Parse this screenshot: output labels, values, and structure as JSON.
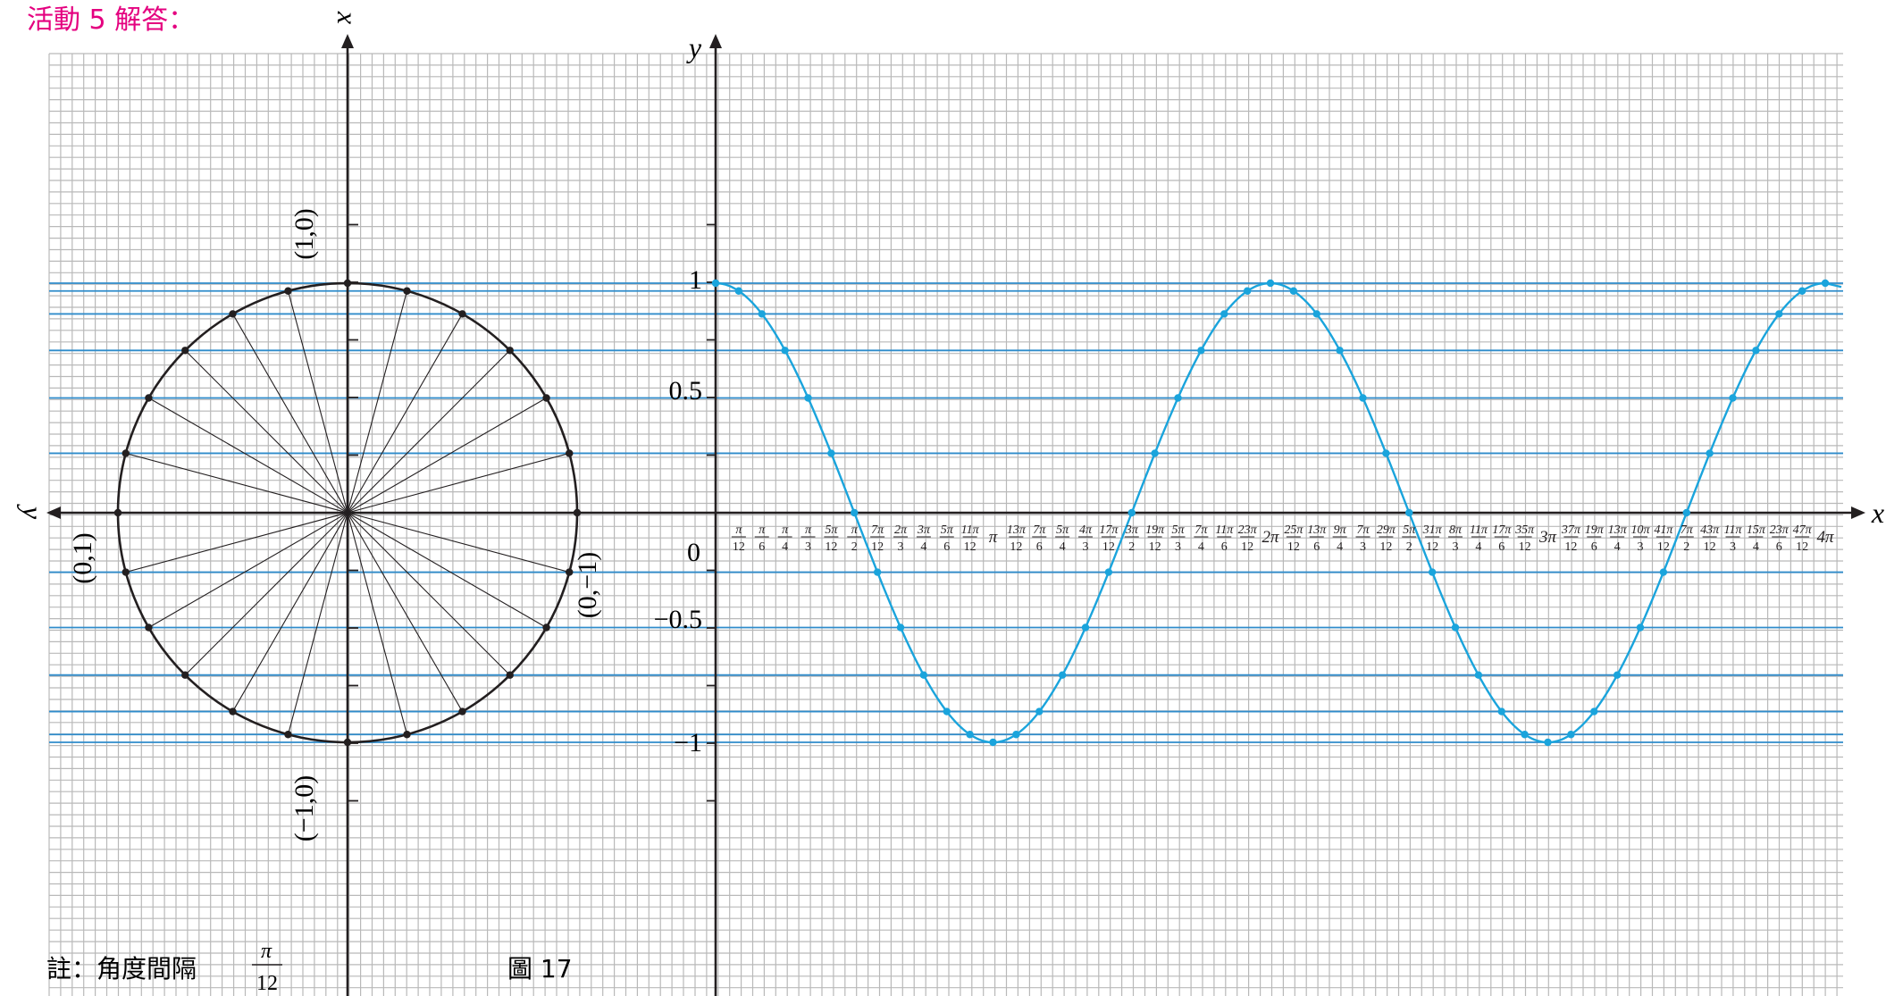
{
  "header": {
    "title": "活動 5 解答：",
    "title_color": "#e4007f"
  },
  "note": {
    "prefix": "註：角度間隔",
    "frac_num": "π",
    "frac_den": "12"
  },
  "figure_label": "圖 17",
  "colors": {
    "grid": "#b9b9b9",
    "axis": "#231f20",
    "curve": "#1aa4dc",
    "guide": "#2f8ccb"
  },
  "circle_panel": {
    "axis_up_label": "x",
    "axis_left_label": "y",
    "point_labels": {
      "top": "(1,0)",
      "bottom": "(−1,0)",
      "left": "(0,1)",
      "right": "(0,−1)"
    },
    "step_angle": "π/12"
  },
  "chart_data": {
    "type": "line",
    "function": "cos x",
    "xlabel": "x",
    "ylabel": "y",
    "xlim_in_pi": [
      0,
      4
    ],
    "ylim": [
      -1,
      1
    ],
    "y_ticks": [
      "1",
      "0.5",
      "0",
      "−0.5",
      "−1"
    ],
    "x_tick_labels": [
      [
        "π",
        "12"
      ],
      [
        "π",
        "6"
      ],
      [
        "π",
        "4"
      ],
      [
        "π",
        "3"
      ],
      [
        "5π",
        "12"
      ],
      [
        "π",
        "2"
      ],
      [
        "7π",
        "12"
      ],
      [
        "2π",
        "3"
      ],
      [
        "3π",
        "4"
      ],
      [
        "5π",
        "6"
      ],
      [
        "11π",
        "12"
      ],
      "π",
      [
        "13π",
        "12"
      ],
      [
        "7π",
        "6"
      ],
      [
        "5π",
        "4"
      ],
      [
        "4π",
        "3"
      ],
      [
        "17π",
        "12"
      ],
      [
        "3π",
        "2"
      ],
      [
        "19π",
        "12"
      ],
      [
        "5π",
        "3"
      ],
      [
        "7π",
        "4"
      ],
      [
        "11π",
        "6"
      ],
      [
        "23π",
        "12"
      ],
      "2π",
      [
        "25π",
        "12"
      ],
      [
        "13π",
        "6"
      ],
      [
        "9π",
        "4"
      ],
      [
        "7π",
        "3"
      ],
      [
        "29π",
        "12"
      ],
      [
        "5π",
        "2"
      ],
      [
        "31π",
        "12"
      ],
      [
        "8π",
        "3"
      ],
      [
        "11π",
        "4"
      ],
      [
        "17π",
        "6"
      ],
      [
        "35π",
        "12"
      ],
      "3π",
      [
        "37π",
        "12"
      ],
      [
        "19π",
        "6"
      ],
      [
        "13π",
        "4"
      ],
      [
        "10π",
        "3"
      ],
      [
        "41π",
        "12"
      ],
      [
        "7π",
        "2"
      ],
      [
        "43π",
        "12"
      ],
      [
        "11π",
        "3"
      ],
      [
        "15π",
        "4"
      ],
      [
        "23π",
        "6"
      ],
      [
        "47π",
        "12"
      ],
      "4π"
    ],
    "points_x_in_pi_over_12": [
      0,
      1,
      2,
      3,
      4,
      5,
      6,
      7,
      8,
      9,
      10,
      11,
      12,
      13,
      14,
      15,
      16,
      17,
      18,
      19,
      20,
      21,
      22,
      23,
      24,
      25,
      26,
      27,
      28,
      29,
      30,
      31,
      32,
      33,
      34,
      35,
      36,
      37,
      38,
      39,
      40,
      41,
      42,
      43,
      44,
      45,
      46,
      47,
      48
    ],
    "points_y": [
      1,
      0.966,
      0.866,
      0.707,
      0.5,
      0.259,
      0,
      -0.259,
      -0.5,
      -0.707,
      -0.866,
      -0.966,
      -1,
      -0.966,
      -0.866,
      -0.707,
      -0.5,
      -0.259,
      0,
      0.259,
      0.5,
      0.707,
      0.866,
      0.966,
      1,
      0.966,
      0.866,
      0.707,
      0.5,
      0.259,
      0,
      -0.259,
      -0.5,
      -0.707,
      -0.866,
      -0.966,
      -1,
      -0.966,
      -0.866,
      -0.707,
      -0.5,
      -0.259,
      0,
      0.259,
      0.5,
      0.707,
      0.866,
      0.966,
      1
    ],
    "guide_lines_y": [
      1,
      0.966,
      0.866,
      0.707,
      0.5,
      0.259,
      -0.259,
      -0.5,
      -0.707,
      -0.866,
      -0.966,
      -1
    ]
  }
}
